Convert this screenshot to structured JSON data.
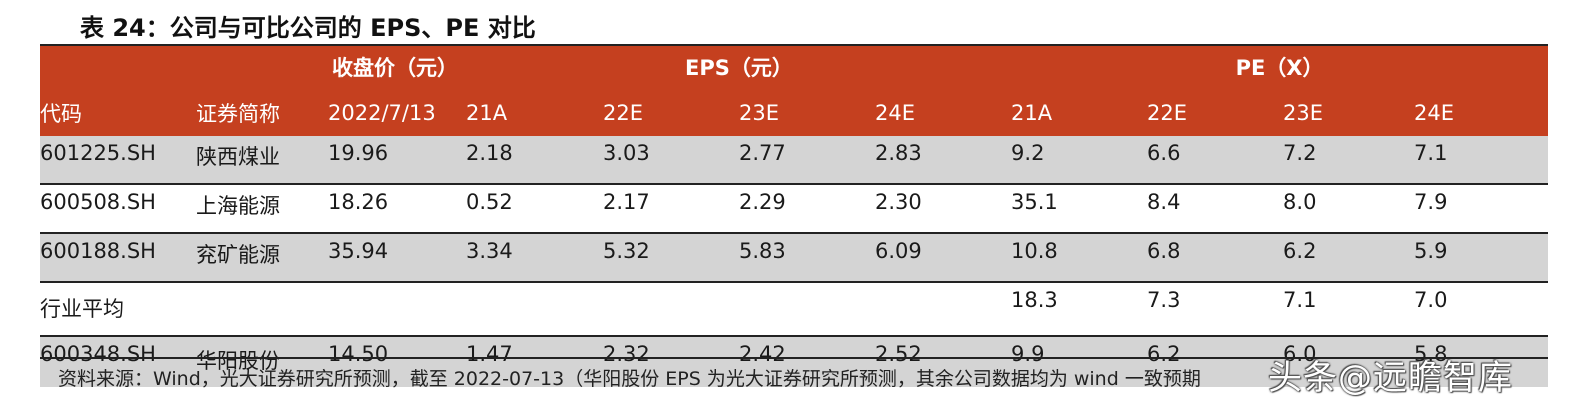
{
  "title": "表 24：公司与可比公司的 EPS、PE 对比",
  "header": {
    "group_price": "收盘价（元）",
    "group_eps": "EPS（元）",
    "group_pe": "PE（X）",
    "columns": [
      "代码",
      "证券简称",
      "2022/7/13",
      "21A",
      "22E",
      "23E",
      "24E",
      "21A",
      "22E",
      "23E",
      "24E"
    ]
  },
  "rows": [
    {
      "code": "601225.SH",
      "name": "陕西煤业",
      "price": "19.96",
      "eps21": "2.18",
      "eps22": "3.03",
      "eps23": "2.77",
      "eps24": "2.83",
      "pe21": "9.2",
      "pe22": "6.6",
      "pe23": "7.2",
      "pe24": "7.1"
    },
    {
      "code": "600508.SH",
      "name": "上海能源",
      "price": "18.26",
      "eps21": "0.52",
      "eps22": "2.17",
      "eps23": "2.29",
      "eps24": "2.30",
      "pe21": "35.1",
      "pe22": "8.4",
      "pe23": "8.0",
      "pe24": "7.9"
    },
    {
      "code": "600188.SH",
      "name": "兖矿能源",
      "price": "35.94",
      "eps21": "3.34",
      "eps22": "5.32",
      "eps23": "5.83",
      "eps24": "6.09",
      "pe21": "10.8",
      "pe22": "6.8",
      "pe23": "6.2",
      "pe24": "5.9"
    }
  ],
  "average": {
    "label": "行业平均",
    "pe21": "18.3",
    "pe22": "7.3",
    "pe23": "7.1",
    "pe24": "7.0"
  },
  "company": {
    "code": "600348.SH",
    "name": "华阳股份",
    "price": "14.50",
    "eps21": "1.47",
    "eps22": "2.32",
    "eps23": "2.42",
    "eps24": "2.52",
    "pe21": "9.9",
    "pe22": "6.2",
    "pe23": "6.0",
    "pe24": "5.8"
  },
  "note": "资料来源：Wind，光大证券研究所预测，截至 2022-07-13（华阳股份 EPS 为光大证券研究所预测，其余公司数据均为 wind 一致预期",
  "watermark": "头条@远瞻智库",
  "colors": {
    "header_bg": "#c5401f",
    "row_shade": "#d4d4d4"
  }
}
